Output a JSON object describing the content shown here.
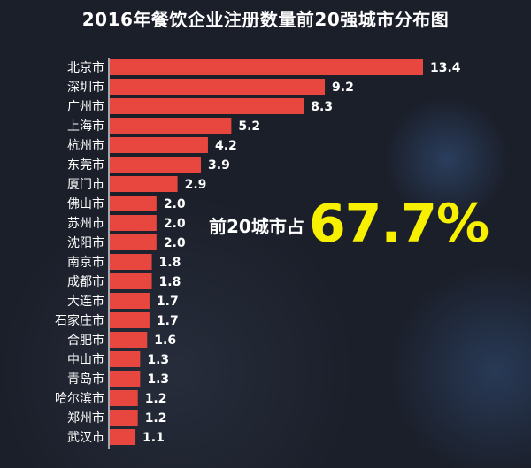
{
  "chart_data": {
    "type": "bar",
    "orientation": "horizontal",
    "title": "2016年餐饮企业注册数量前20强城市分布图",
    "categories": [
      "北京市",
      "深圳市",
      "广州市",
      "上海市",
      "杭州市",
      "东莞市",
      "厦门市",
      "佛山市",
      "苏州市",
      "沈阳市",
      "南京市",
      "成都市",
      "大连市",
      "石家庄市",
      "合肥市",
      "中山市",
      "青岛市",
      "哈尔滨市",
      "郑州市",
      "武汉市"
    ],
    "values": [
      13.4,
      9.2,
      8.3,
      5.2,
      4.2,
      3.9,
      2.9,
      2.0,
      2.0,
      2.0,
      1.8,
      1.8,
      1.7,
      1.7,
      1.6,
      1.3,
      1.3,
      1.2,
      1.2,
      1.1
    ],
    "value_labels": [
      "13.4",
      "9.2",
      "8.3",
      "5.2",
      "4.2",
      "3.9",
      "2.9",
      "2.0",
      "2.0",
      "2.0",
      "1.8",
      "1.8",
      "1.7",
      "1.7",
      "1.6",
      "1.3",
      "1.3",
      "1.2",
      "1.2",
      "1.1"
    ],
    "bar_color": "#e8473f",
    "xlim": [
      0,
      13.4
    ],
    "grid": false
  },
  "callout": {
    "text": "前20城市占",
    "percent": "67.7%",
    "percent_color": "#f7f000"
  },
  "colors": {
    "background": "#1b1f2a",
    "bar": "#e8473f",
    "text": "#ffffff"
  }
}
